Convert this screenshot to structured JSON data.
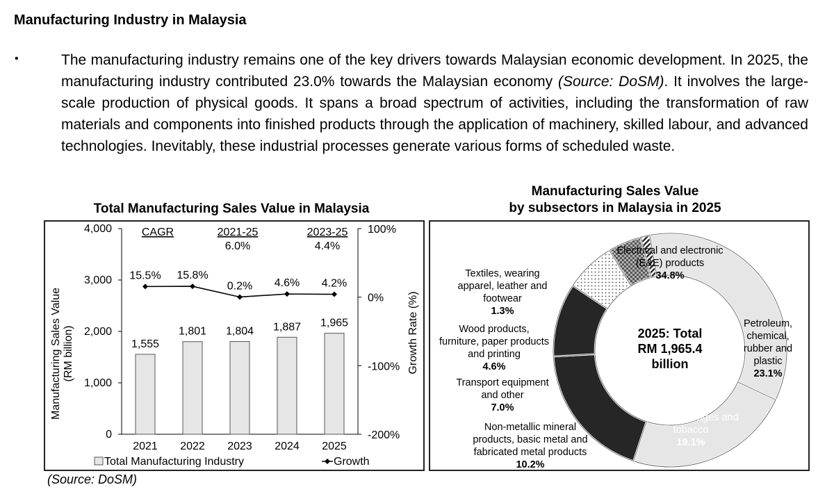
{
  "heading": "Manufacturing Industry in Malaysia",
  "bullet": "•",
  "paragraph": {
    "part1": "The manufacturing industry remains one of the key drivers towards Malaysian economic development. In 2025, the manufacturing industry contributed 23.0% towards the Malaysian economy ",
    "source_inline": "(Source: DoSM)",
    "part2": ". It involves the large-scale production of physical goods. It spans a broad spectrum of activities, including the transformation of raw materials and components into finished products through the application of machinery, skilled labour, and advanced technologies. Inevitably, these industrial processes generate various forms of scheduled waste."
  },
  "source_note": "(Source: DoSM)",
  "chart_data": [
    {
      "type": "bar",
      "title": "Total Manufacturing Sales Value in Malaysia",
      "categories": [
        "2021",
        "2022",
        "2023",
        "2024",
        "2025"
      ],
      "series": [
        {
          "name": "Total Manufacturing Industry",
          "type": "bar",
          "values": [
            1555,
            1801,
            1804,
            1887,
            1965
          ],
          "labels": [
            "1,555",
            "1,801",
            "1,804",
            "1,887",
            "1,965"
          ]
        },
        {
          "name": "Growth",
          "type": "line",
          "axis": "right",
          "values": [
            15.5,
            15.8,
            0.2,
            4.6,
            4.2
          ],
          "labels": [
            "15.5%",
            "15.8%",
            "0.2%",
            "4.6%",
            "4.2%"
          ]
        }
      ],
      "ylabel": "Manufacturing Sales Value\n(RM billion)",
      "y2label": "Growth Rate (%)",
      "ylim": [
        0,
        4000
      ],
      "yticks": [
        0,
        1000,
        2000,
        3000,
        4000
      ],
      "ytick_labels": [
        "0",
        "1,000",
        "2,000",
        "3,000",
        "4,000"
      ],
      "y2lim": [
        -200,
        100
      ],
      "y2ticks": [
        -200,
        -100,
        0,
        100
      ],
      "y2tick_labels": [
        "-200%",
        "-100%",
        "0%",
        "100%"
      ],
      "annotations": {
        "cagr": "CAGR",
        "period1": "2021-25",
        "value1": "6.0%",
        "period2": "2023-25",
        "value2": "4.4%"
      },
      "legend_position": "bottom",
      "grid": false,
      "colors": {
        "bar": "#e6e6e6",
        "bar_border": "#555555",
        "line": "#000000"
      }
    },
    {
      "type": "pie",
      "title": "Manufacturing Sales Value\nby subsectors in Malaysia in 2025",
      "center_label": "2025: Total\nRM 1,965.4\nbillion",
      "slices": [
        {
          "label": "Electrical and electronic\n(E&E) products",
          "value": 34.8,
          "value_label": "34.8%",
          "fill": "light"
        },
        {
          "label": "Petroleum,\nchemical,\nrubber and\nplastic",
          "value": 23.1,
          "value_label": "23.1%",
          "fill": "light"
        },
        {
          "label": "Food, beverages and\ntobacco",
          "value": 19.1,
          "value_label": "19.1%",
          "fill": "dark"
        },
        {
          "label": "Non-metallic mineral\nproducts, basic metal and\nfabricated metal products",
          "value": 10.2,
          "value_label": "10.2%",
          "fill": "dark"
        },
        {
          "label": "Transport equipment\nand other",
          "value": 7.0,
          "value_label": "7.0%",
          "fill": "dots"
        },
        {
          "label": "Wood products,\nfurniture, paper products\nand printing",
          "value": 4.6,
          "value_label": "4.6%",
          "fill": "checker"
        },
        {
          "label": "Textiles, wearing\napparel, leather and\nfootwear",
          "value": 1.3,
          "value_label": "1.3%",
          "fill": "hatch"
        }
      ],
      "donut": true,
      "colors": {
        "light": "#e6e6e6",
        "dark": "#262626",
        "border": "#555555"
      }
    }
  ]
}
